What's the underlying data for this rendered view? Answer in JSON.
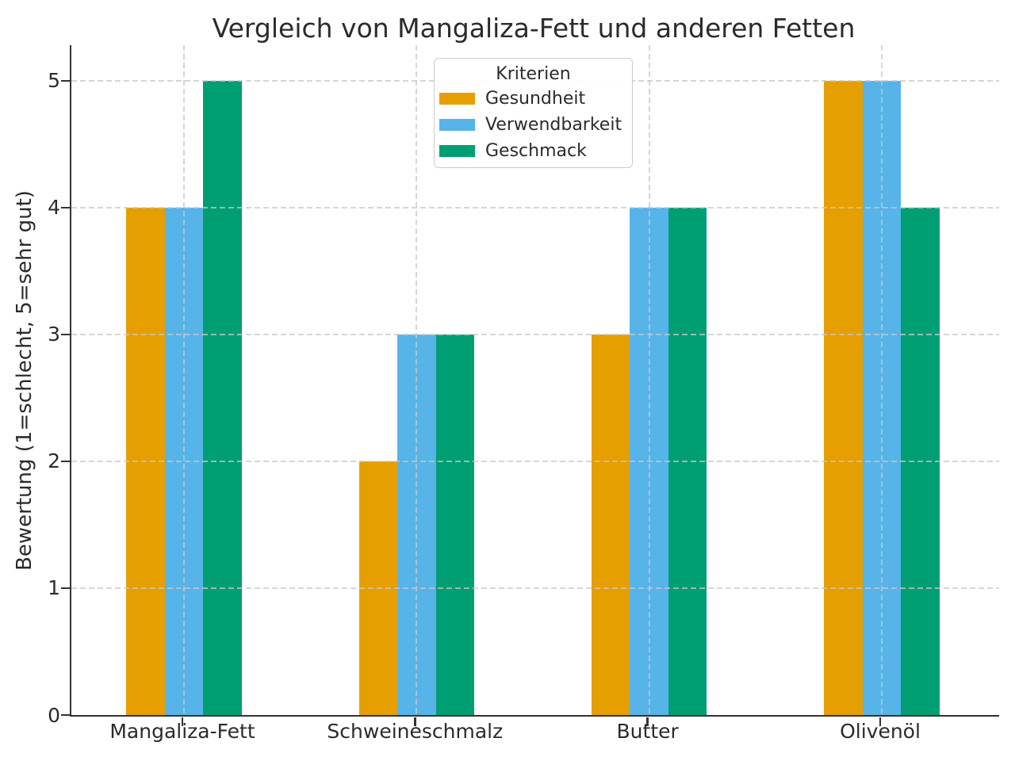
{
  "chart_data": {
    "type": "bar",
    "title": "Vergleich von Mangaliza-Fett und anderen Fetten",
    "xlabel": "",
    "ylabel": "Bewertung (1=schlecht, 5=sehr gut)",
    "categories": [
      "Mangaliza-Fett",
      "Schweineschmalz",
      "Butter",
      "Olivenöl"
    ],
    "series": [
      {
        "name": "Gesundheit",
        "color": "#E69F00",
        "values": [
          4,
          2,
          3,
          5
        ]
      },
      {
        "name": "Verwendbarkeit",
        "color": "#56B4E9",
        "values": [
          4,
          3,
          4,
          5
        ]
      },
      {
        "name": "Geschmack",
        "color": "#009E73",
        "values": [
          5,
          3,
          4,
          4
        ]
      }
    ],
    "legend": {
      "title": "Kriterien",
      "position": "upper-center"
    },
    "ylim": [
      0,
      5.28
    ],
    "yticks": [
      0,
      1,
      2,
      3,
      4,
      5
    ],
    "grid": true,
    "grid_style": "dashed",
    "axis_color": "#333333",
    "grid_color": "#c8c8c8",
    "text_color": "#2b2b2b"
  }
}
